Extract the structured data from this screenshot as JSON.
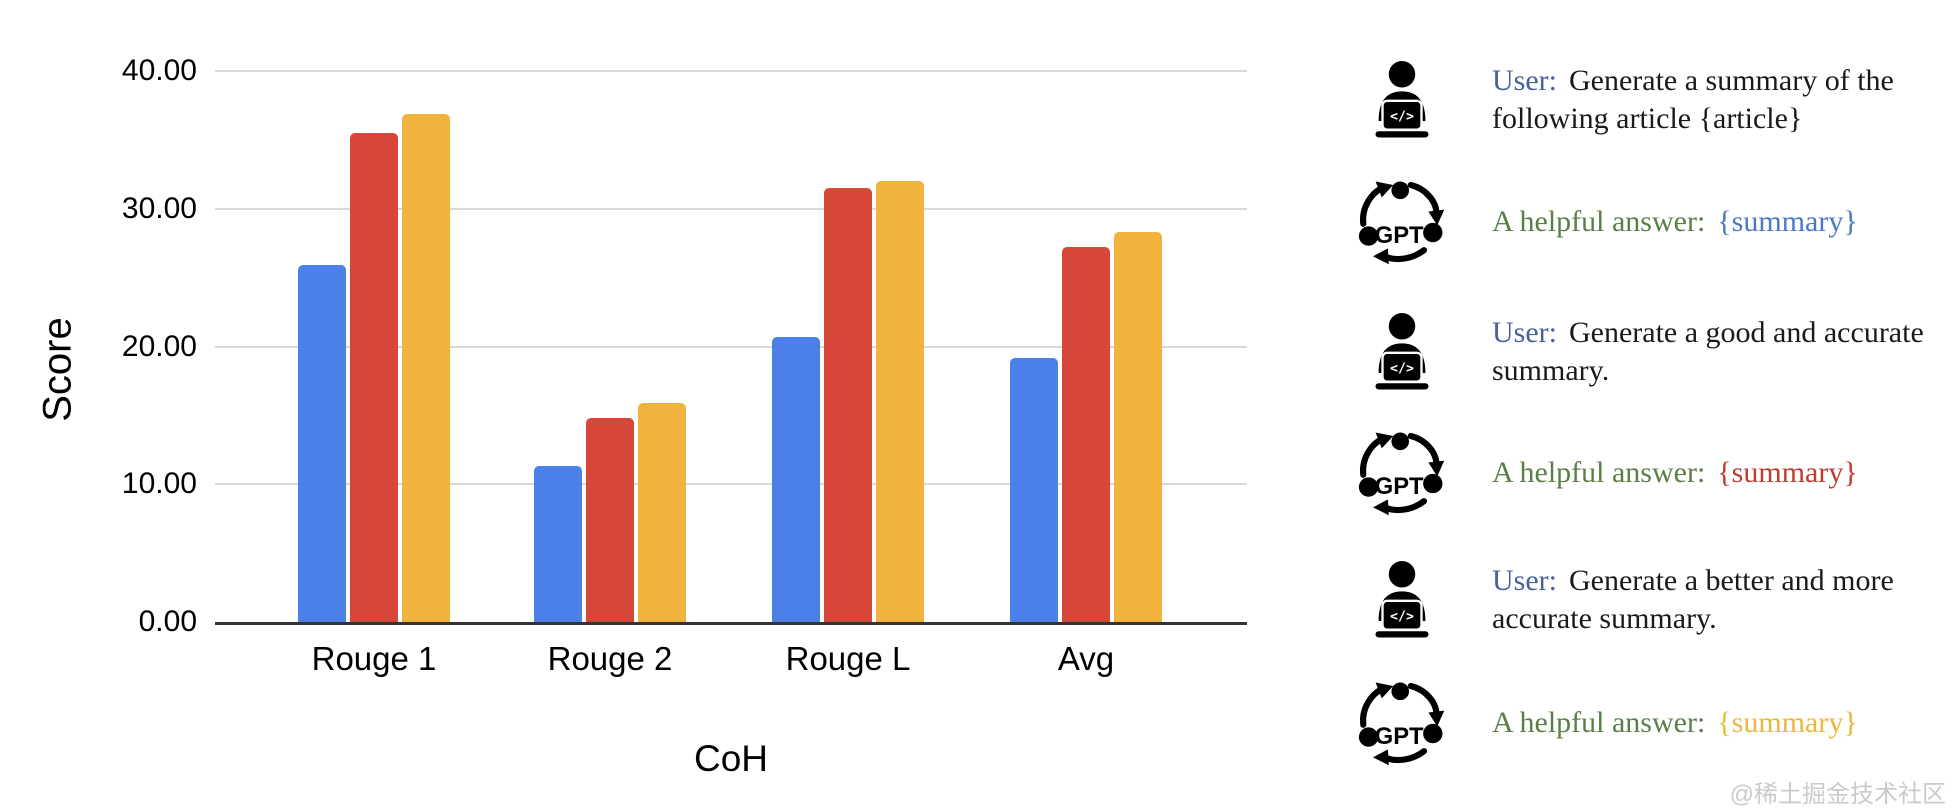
{
  "chart_data": {
    "type": "bar",
    "title": "",
    "xlabel": "CoH",
    "ylabel": "Score",
    "categories": [
      "Rouge 1",
      "Rouge 2",
      "Rouge L",
      "Avg"
    ],
    "series": [
      {
        "name": "blue",
        "color": "#4A80E8",
        "values": [
          25.9,
          11.3,
          20.7,
          19.2
        ]
      },
      {
        "name": "red",
        "color": "#D6473A",
        "values": [
          35.5,
          14.8,
          31.5,
          27.2
        ]
      },
      {
        "name": "yellow",
        "color": "#F0B43E",
        "values": [
          36.9,
          15.9,
          32.0,
          28.3
        ]
      }
    ],
    "ylim": [
      0,
      40
    ],
    "ytick_labels": [
      "40.00",
      "30.00",
      "20.00",
      "10.00",
      "0.00"
    ],
    "grid": "horizontal",
    "legend": "none"
  },
  "conversation": {
    "gpt_label": "GPT",
    "user_icon_code": "</>",
    "rows": [
      {
        "icon": "user",
        "speaker": "User:",
        "speaker_color": "#46619E",
        "text": "Generate a summary of the\nfollowing article {article}"
      },
      {
        "icon": "gpt",
        "speaker": "A helpful answer:",
        "speaker_color": "#5C7F47",
        "value": "{summary}",
        "value_color": "#4B77C9"
      },
      {
        "icon": "user",
        "speaker": "User:",
        "speaker_color": "#46619E",
        "text": "Generate a good and accurate\nsummary."
      },
      {
        "icon": "gpt",
        "speaker": "A helpful answer:",
        "speaker_color": "#5C7F47",
        "value": "{summary}",
        "value_color": "#C23B2E"
      },
      {
        "icon": "user",
        "speaker": "User:",
        "speaker_color": "#46619E",
        "text": "Generate a better and more\naccurate summary."
      },
      {
        "icon": "gpt",
        "speaker": "A helpful answer:",
        "speaker_color": "#5C7F47",
        "value": "{summary}",
        "value_color": "#EDB73E"
      }
    ]
  },
  "watermark": "@稀土掘金技术社区"
}
